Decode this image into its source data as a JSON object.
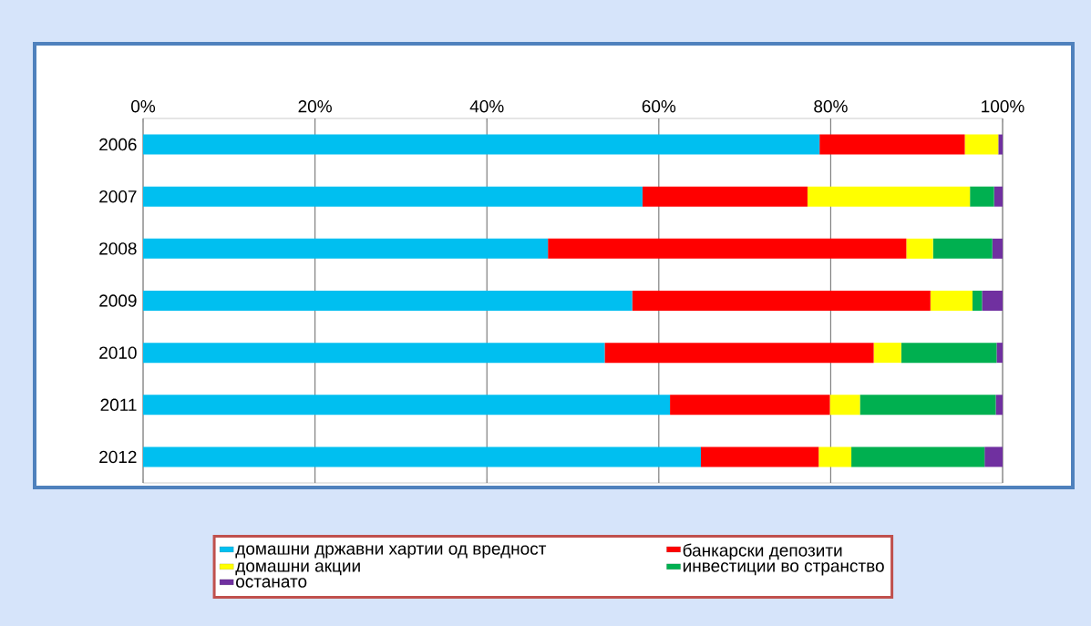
{
  "chart_data": {
    "type": "bar",
    "orientation": "horizontal",
    "stacked": true,
    "categories": [
      "2006",
      "2007",
      "2008",
      "2009",
      "2010",
      "2011",
      "2012"
    ],
    "series": [
      {
        "name": "домашни државни хартии од вредност",
        "color": "#00bff0",
        "values": [
          78.7,
          58.1,
          47.1,
          56.9,
          53.7,
          61.3,
          64.9
        ]
      },
      {
        "name": "банкарски депозити",
        "color": "#ff0000",
        "values": [
          16.9,
          19.2,
          41.7,
          34.7,
          31.3,
          18.6,
          13.7
        ]
      },
      {
        "name": "домашни акции",
        "color": "#ffff00",
        "values": [
          3.9,
          18.9,
          3.1,
          4.9,
          3.2,
          3.5,
          3.8
        ]
      },
      {
        "name": "инвестиции во странство",
        "color": "#00b050",
        "values": [
          0,
          2.8,
          6.9,
          1.1,
          11.1,
          15.8,
          15.5
        ]
      },
      {
        "name": "останато",
        "color": "#7030a0",
        "values": [
          0.5,
          1.0,
          1.2,
          2.4,
          0.7,
          0.8,
          2.1
        ]
      }
    ],
    "xlim": [
      0,
      100
    ],
    "xticks": [
      {
        "value": 0,
        "label": "0%"
      },
      {
        "value": 20,
        "label": "20%"
      },
      {
        "value": 40,
        "label": "40%"
      },
      {
        "value": 60,
        "label": "60%"
      },
      {
        "value": 80,
        "label": "80%"
      },
      {
        "value": 100,
        "label": "100%"
      }
    ],
    "grid": "x",
    "legend": "bottom"
  }
}
